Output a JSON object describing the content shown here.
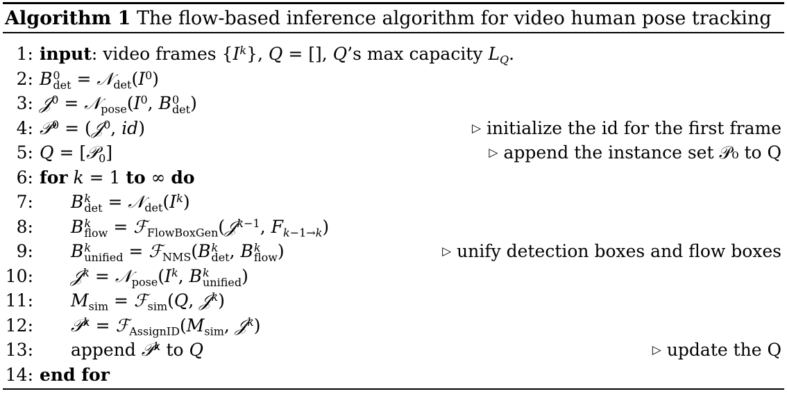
{
  "caption": {
    "label": "Algorithm 1",
    "title": "The flow-based inference algorithm for video human pose tracking"
  },
  "lines": [
    {
      "no": "1:",
      "comment": ""
    },
    {
      "no": "2:",
      "comment": ""
    },
    {
      "no": "3:",
      "comment": ""
    },
    {
      "no": "4:",
      "comment": "initialize the id for the first frame"
    },
    {
      "no": "5:",
      "comment": "append the instance set 𝒫₀ to Q"
    },
    {
      "no": "6:",
      "comment": ""
    },
    {
      "no": "7:",
      "comment": ""
    },
    {
      "no": "8:",
      "comment": ""
    },
    {
      "no": "9:",
      "comment": "unify detection boxes and flow boxes"
    },
    {
      "no": "10:",
      "comment": ""
    },
    {
      "no": "11:",
      "comment": ""
    },
    {
      "no": "12:",
      "comment": ""
    },
    {
      "no": "13:",
      "comment": "update the Q"
    },
    {
      "no": "14:",
      "comment": ""
    }
  ],
  "keywords": {
    "input": "input",
    "for": "for",
    "to": "to",
    "do": "do",
    "end_for": "end for"
  },
  "text": {
    "input_rest": ": video frames {",
    "q_empty": "}, Q = [], Q’s max capacity L",
    "append": "append",
    "to_plain": "to"
  }
}
